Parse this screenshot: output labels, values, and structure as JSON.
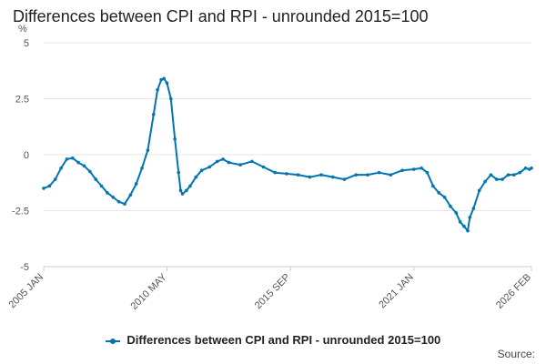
{
  "chart_data": {
    "type": "line",
    "title": "Differences between CPI and RPI - unrounded 2015=100",
    "ylabel": "%",
    "xlabel": "",
    "ylim": [
      -5,
      5
    ],
    "yticks": [
      "5",
      "2.5",
      "0",
      "-2.5",
      "-5"
    ],
    "ytick_values": [
      5,
      2.5,
      0,
      -2.5,
      -5
    ],
    "xticks": [
      {
        "label": "2005 JAN",
        "t": 2005.0
      },
      {
        "label": "2010 MAY",
        "t": 2010.333
      },
      {
        "label": "2015 SEP",
        "t": 2015.667
      },
      {
        "label": "2021 JAN",
        "t": 2021.0
      },
      {
        "label": "2026 FEB",
        "t": 2026.083
      }
    ],
    "xlim": [
      2005.0,
      2026.083
    ],
    "legend": "bottom-center",
    "grid": true,
    "series": [
      {
        "name": "Differences between CPI and RPI - unrounded 2015=100",
        "color": "#0075b0",
        "points": [
          [
            2005.0,
            -1.5
          ],
          [
            2005.25,
            -1.4
          ],
          [
            2005.5,
            -1.1
          ],
          [
            2005.75,
            -0.6
          ],
          [
            2006.0,
            -0.2
          ],
          [
            2006.25,
            -0.15
          ],
          [
            2006.5,
            -0.35
          ],
          [
            2006.75,
            -0.5
          ],
          [
            2007.0,
            -0.75
          ],
          [
            2007.25,
            -1.1
          ],
          [
            2007.5,
            -1.4
          ],
          [
            2007.75,
            -1.7
          ],
          [
            2008.0,
            -1.9
          ],
          [
            2008.25,
            -2.1
          ],
          [
            2008.5,
            -2.2
          ],
          [
            2008.75,
            -1.8
          ],
          [
            2009.0,
            -1.3
          ],
          [
            2009.25,
            -0.6
          ],
          [
            2009.5,
            0.2
          ],
          [
            2009.75,
            1.8
          ],
          [
            2009.92,
            2.9
          ],
          [
            2010.08,
            3.35
          ],
          [
            2010.2,
            3.4
          ],
          [
            2010.33,
            3.2
          ],
          [
            2010.5,
            2.5
          ],
          [
            2010.67,
            0.7
          ],
          [
            2010.83,
            -0.8
          ],
          [
            2010.92,
            -1.6
          ],
          [
            2011.0,
            -1.75
          ],
          [
            2011.17,
            -1.6
          ],
          [
            2011.33,
            -1.4
          ],
          [
            2011.58,
            -1.0
          ],
          [
            2011.83,
            -0.7
          ],
          [
            2012.17,
            -0.55
          ],
          [
            2012.5,
            -0.3
          ],
          [
            2012.75,
            -0.2
          ],
          [
            2013.0,
            -0.35
          ],
          [
            2013.5,
            -0.45
          ],
          [
            2014.0,
            -0.3
          ],
          [
            2014.5,
            -0.55
          ],
          [
            2015.0,
            -0.8
          ],
          [
            2015.5,
            -0.85
          ],
          [
            2016.0,
            -0.9
          ],
          [
            2016.5,
            -1.0
          ],
          [
            2017.0,
            -0.9
          ],
          [
            2017.5,
            -1.0
          ],
          [
            2018.0,
            -1.1
          ],
          [
            2018.5,
            -0.9
          ],
          [
            2019.0,
            -0.9
          ],
          [
            2019.5,
            -0.8
          ],
          [
            2020.0,
            -0.9
          ],
          [
            2020.5,
            -0.7
          ],
          [
            2021.0,
            -0.65
          ],
          [
            2021.33,
            -0.6
          ],
          [
            2021.58,
            -0.8
          ],
          [
            2021.83,
            -1.4
          ],
          [
            2022.08,
            -1.7
          ],
          [
            2022.33,
            -1.9
          ],
          [
            2022.58,
            -2.3
          ],
          [
            2022.83,
            -2.6
          ],
          [
            2023.0,
            -3.0
          ],
          [
            2023.17,
            -3.2
          ],
          [
            2023.33,
            -3.4
          ],
          [
            2023.42,
            -2.8
          ],
          [
            2023.58,
            -2.4
          ],
          [
            2023.83,
            -1.6
          ],
          [
            2024.08,
            -1.2
          ],
          [
            2024.33,
            -0.9
          ],
          [
            2024.58,
            -1.1
          ],
          [
            2024.83,
            -1.1
          ],
          [
            2025.08,
            -0.9
          ],
          [
            2025.33,
            -0.9
          ],
          [
            2025.58,
            -0.8
          ],
          [
            2025.83,
            -0.6
          ],
          [
            2026.0,
            -0.65
          ],
          [
            2026.083,
            -0.6
          ]
        ]
      }
    ],
    "source": "Source:"
  }
}
